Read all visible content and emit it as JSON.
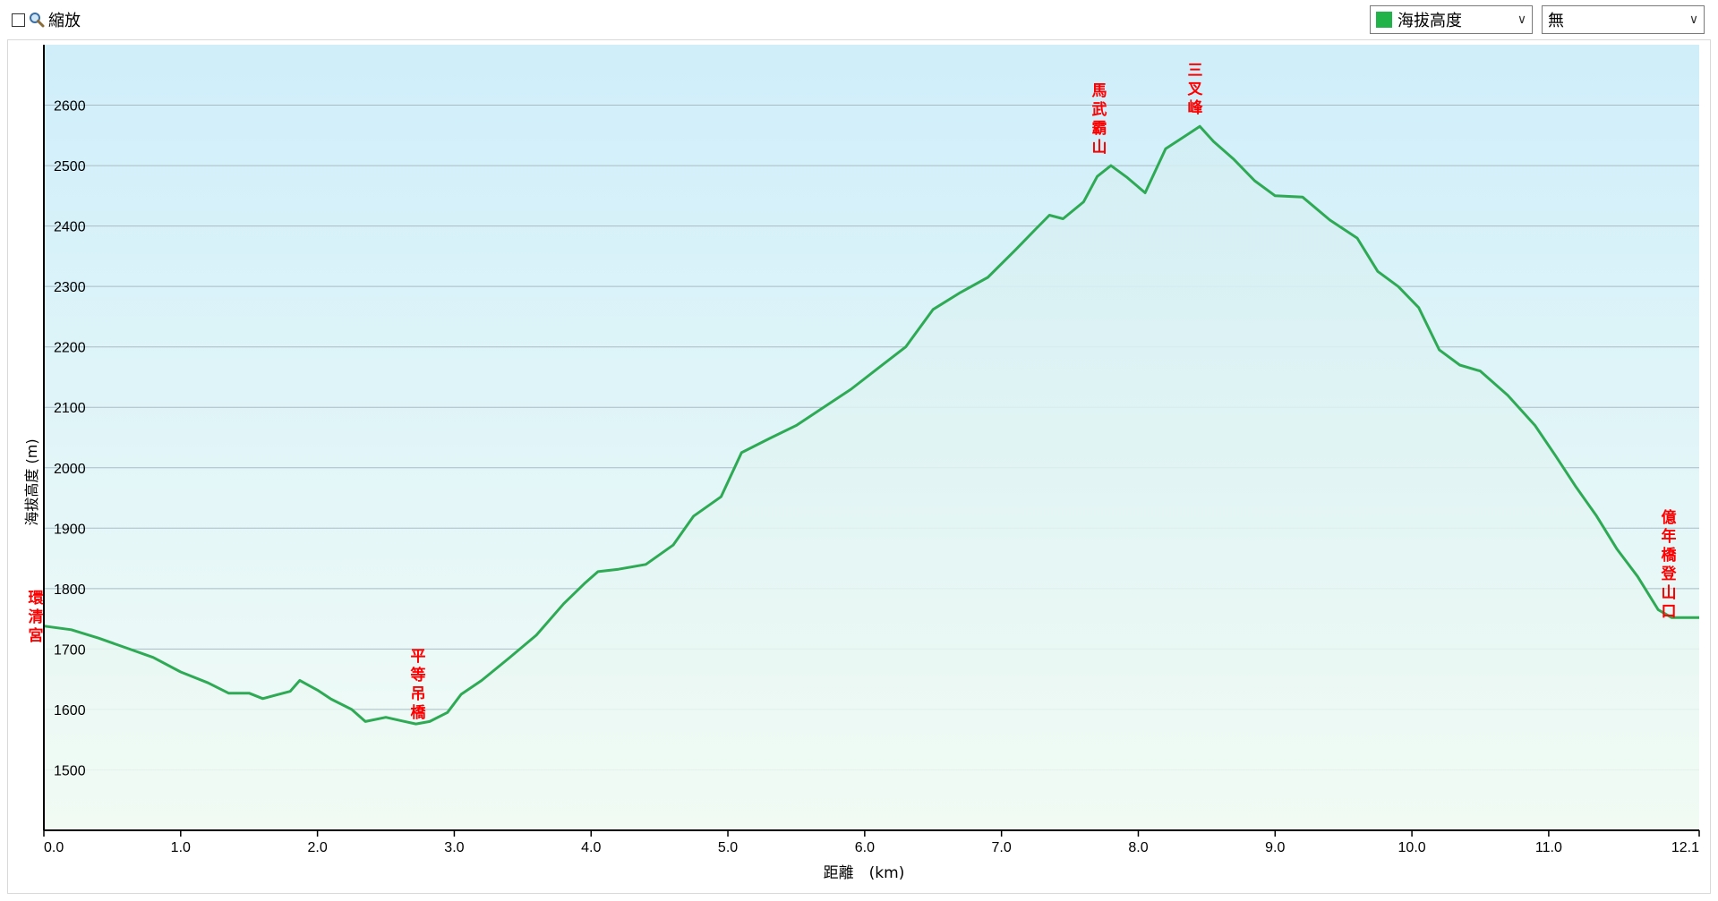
{
  "toolbar": {
    "zoom_label": "縮放",
    "zoom_checked": false,
    "series_select": {
      "label": "海拔高度",
      "color": "#1fb34a"
    },
    "secondary_select": {
      "label": "無"
    }
  },
  "colors": {
    "line": "#2eaa55",
    "area_top": "#d3eef4",
    "area_bottom": "#f1fbf3",
    "bg_top": "#cfeefa",
    "bg_bottom": "#f3fcf6",
    "grid": "#a9bcc6",
    "annotation": "#ff0000"
  },
  "chart_data": {
    "type": "area",
    "xlabel": "距離　(km)",
    "ylabel": "海拔高度 (m)",
    "xlim": [
      0,
      12.1
    ],
    "ylim": [
      1400,
      2700
    ],
    "x_ticks": [
      0.0,
      1.0,
      2.0,
      3.0,
      4.0,
      5.0,
      6.0,
      7.0,
      8.0,
      9.0,
      10.0,
      11.0,
      12.1
    ],
    "x_tick_labels": [
      "0.0",
      "1.0",
      "2.0",
      "3.0",
      "4.0",
      "5.0",
      "6.0",
      "7.0",
      "8.0",
      "9.0",
      "10.0",
      "11.0",
      "12.1"
    ],
    "y_ticks": [
      1500,
      1600,
      1700,
      1800,
      1900,
      2000,
      2100,
      2200,
      2300,
      2400,
      2500,
      2600
    ],
    "y_tick_labels": [
      "1500",
      "1600",
      "1700",
      "1800",
      "1900",
      "2000",
      "2100",
      "2200",
      "2300",
      "2400",
      "2500",
      "2600"
    ],
    "grid": true,
    "series": [
      {
        "name": "海拔高度",
        "x": [
          0.0,
          0.2,
          0.4,
          0.6,
          0.8,
          1.0,
          1.2,
          1.35,
          1.5,
          1.6,
          1.7,
          1.8,
          1.87,
          2.0,
          2.1,
          2.25,
          2.35,
          2.5,
          2.62,
          2.72,
          2.82,
          2.95,
          3.05,
          3.2,
          3.4,
          3.6,
          3.8,
          3.95,
          4.05,
          4.2,
          4.4,
          4.6,
          4.75,
          4.95,
          5.1,
          5.3,
          5.5,
          5.7,
          5.9,
          6.1,
          6.3,
          6.5,
          6.7,
          6.9,
          7.1,
          7.25,
          7.35,
          7.45,
          7.6,
          7.7,
          7.8,
          7.92,
          8.05,
          8.2,
          8.35,
          8.45,
          8.55,
          8.7,
          8.85,
          9.0,
          9.2,
          9.4,
          9.6,
          9.75,
          9.9,
          10.05,
          10.2,
          10.35,
          10.5,
          10.7,
          10.9,
          11.05,
          11.2,
          11.35,
          11.5,
          11.65,
          11.8,
          11.9,
          12.1
        ],
        "y": [
          1738,
          1732,
          1718,
          1702,
          1686,
          1662,
          1644,
          1627,
          1627,
          1618,
          1624,
          1630,
          1648,
          1632,
          1617,
          1600,
          1580,
          1587,
          1581,
          1576,
          1580,
          1595,
          1625,
          1648,
          1685,
          1723,
          1775,
          1808,
          1828,
          1832,
          1840,
          1872,
          1920,
          1952,
          2025,
          2048,
          2070,
          2100,
          2130,
          2165,
          2200,
          2262,
          2290,
          2315,
          2360,
          2395,
          2418,
          2412,
          2440,
          2482,
          2500,
          2480,
          2455,
          2528,
          2550,
          2565,
          2540,
          2510,
          2475,
          2450,
          2448,
          2410,
          2380,
          2325,
          2300,
          2265,
          2195,
          2170,
          2160,
          2120,
          2070,
          2020,
          1968,
          1920,
          1865,
          1820,
          1765,
          1752,
          1752
        ]
      }
    ],
    "annotations": [
      {
        "text": "環清宮",
        "x": 0.0,
        "y": 1738
      },
      {
        "text": "平等吊橋",
        "x": 2.75,
        "y": 1578
      },
      {
        "text": "馬武霸山",
        "x": 7.72,
        "y": 2500
      },
      {
        "text": "三叉峰",
        "x": 8.42,
        "y": 2565
      },
      {
        "text": "億年橋登山口",
        "x": 11.9,
        "y": 1752
      }
    ]
  }
}
